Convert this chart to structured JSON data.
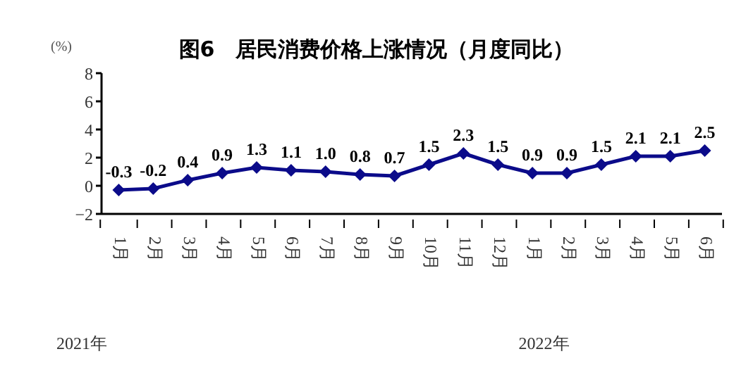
{
  "chart_data": {
    "type": "line",
    "title": "图6　居民消费价格上涨情况（月度同比）",
    "ylabel": "(%)",
    "categories": [
      "1月",
      "2月",
      "3月",
      "4月",
      "5月",
      "6月",
      "7月",
      "8月",
      "9月",
      "10月",
      "11月",
      "12月",
      "1月",
      "2月",
      "3月",
      "4月",
      "5月",
      "6月"
    ],
    "series": [
      {
        "color": "#0b0b8a",
        "values": [
          -0.3,
          -0.2,
          0.4,
          0.9,
          1.3,
          1.1,
          1.0,
          0.8,
          0.7,
          1.5,
          2.3,
          1.5,
          0.9,
          0.9,
          1.5,
          2.1,
          2.1,
          2.5
        ],
        "value_labels": [
          "-0.3",
          "-0.2",
          "0.4",
          "0.9",
          "1.3",
          "1.1",
          "1.0",
          "0.8",
          "0.7",
          "1.5",
          "2.3",
          "1.5",
          "0.9",
          "0.9",
          "1.5",
          "2.1",
          "2.1",
          "2.5"
        ]
      }
    ],
    "ylim": [
      -2,
      8
    ],
    "yticks": [
      {
        "value": -2,
        "label": "−2"
      },
      0,
      2,
      4,
      6,
      8
    ],
    "annotations": [
      "2021年",
      "2022年"
    ],
    "grid": false,
    "legend": false,
    "marker": "diamond",
    "line_style": "solid"
  }
}
